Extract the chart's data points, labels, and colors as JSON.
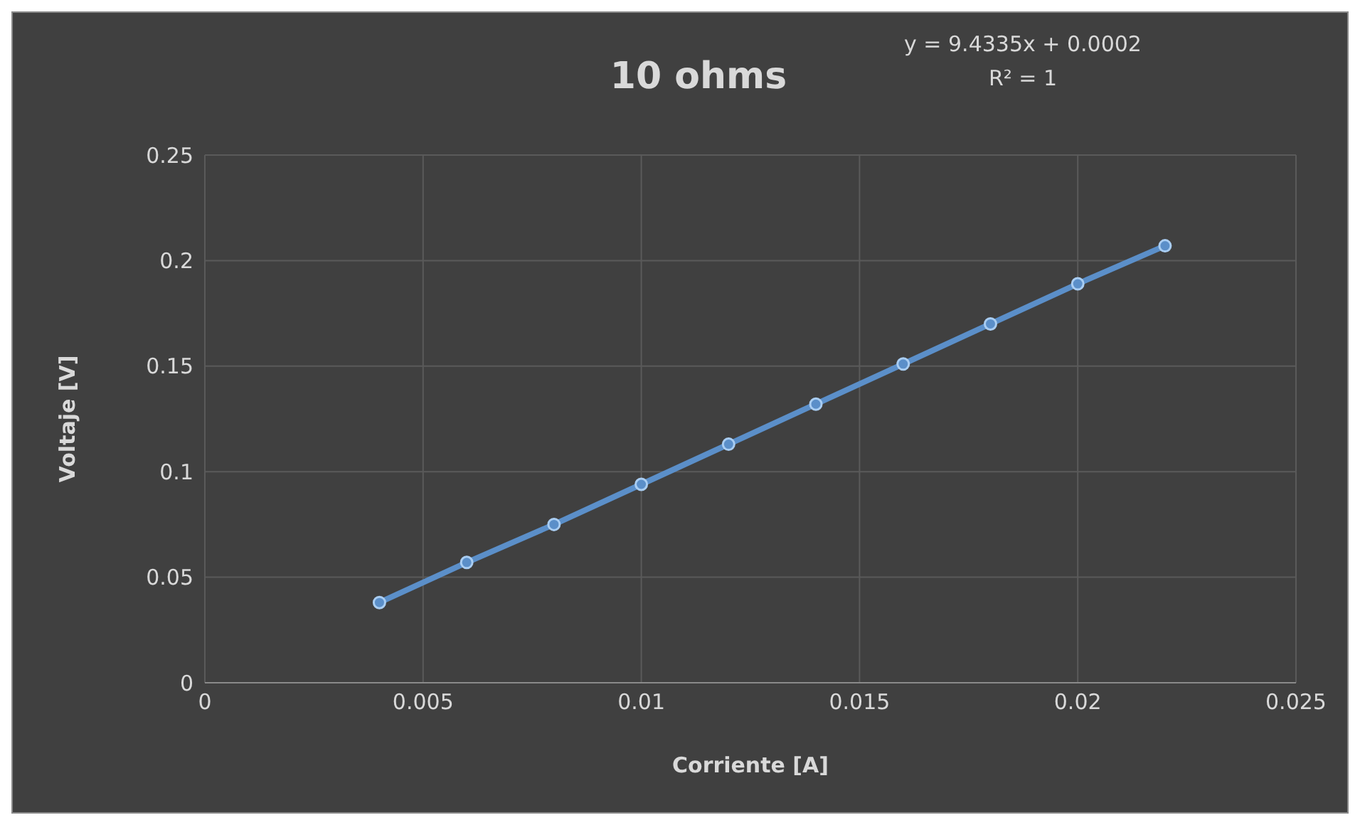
{
  "chart_data": {
    "type": "line",
    "title": "10 ohms",
    "xlabel": "Corriente [A]",
    "ylabel": "Voltaje [V]",
    "annotations": [
      "y = 9.4335x + 0.0002",
      "R² = 1"
    ],
    "x": [
      0.004,
      0.006,
      0.008,
      0.01,
      0.012,
      0.014,
      0.016,
      0.018,
      0.02,
      0.022
    ],
    "series": [
      {
        "color": "#5b8fc9",
        "values": [
          0.038,
          0.057,
          0.075,
          0.094,
          0.113,
          0.132,
          0.151,
          0.17,
          0.189,
          0.207
        ]
      }
    ],
    "xlim": [
      0,
      0.025
    ],
    "xticks": [
      0,
      0.005,
      0.01,
      0.015,
      0.02,
      0.025
    ],
    "ylim": [
      0,
      0.25
    ],
    "yticks": [
      0,
      0.05,
      0.1,
      0.15,
      0.2,
      0.25
    ],
    "grid": true,
    "marker": "circle",
    "line_style": "solid",
    "legend": false
  }
}
